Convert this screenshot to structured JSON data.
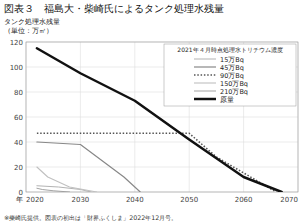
{
  "chart_data": {
    "type": "line",
    "title": "図表３　福島大・柴崎氏によるタンク処理水残量",
    "ylabel": [
      "タンク処理水残量",
      "（単位：万㎥）"
    ],
    "xlabel": "年",
    "annotations": [
      "※柴崎氏提供。図表の初出は「財界ふくしま」2022年12月号。"
    ],
    "xlim": [
      2020,
      2070
    ],
    "ylim": [
      0,
      120
    ],
    "xticks": [
      2020,
      2030,
      2040,
      2050,
      2060,
      2070
    ],
    "yticks": [
      0,
      20,
      40,
      60,
      80,
      100,
      120
    ],
    "grid": true,
    "legend": "upper-right",
    "legend_title": "2021年４月時点処理水トリチウム濃度",
    "series": [
      {
        "name": "15万Bq",
        "color": "#aaaaaa",
        "line_style": "solid",
        "x": [
          2022,
          2026,
          2030,
          2032
        ],
        "values": [
          5,
          4,
          2,
          0
        ]
      },
      {
        "name": "45万Bq",
        "color": "#888888",
        "line_style": "solid",
        "x": [
          2022,
          2030,
          2038,
          2041
        ],
        "values": [
          40,
          38,
          12,
          0
        ]
      },
      {
        "name": "90万Bq",
        "color": "#555555",
        "line_style": "dotted",
        "x": [
          2022,
          2050,
          2055,
          2066
        ],
        "values": [
          47,
          47,
          28,
          0
        ]
      },
      {
        "name": "150万Bq",
        "color": "#c0c0c0",
        "line_style": "solid",
        "x": [
          2022,
          2024,
          2028,
          2033
        ],
        "values": [
          20,
          12,
          4,
          0
        ]
      },
      {
        "name": "210万Bq",
        "color": "#999999",
        "line_style": "solid",
        "x": [
          2022,
          2023,
          2025,
          2028
        ],
        "values": [
          3,
          2,
          1,
          0
        ]
      },
      {
        "name": "原量",
        "color": "#111111",
        "line_style": "solid",
        "x": [
          2022,
          2030,
          2040,
          2050,
          2060,
          2067
        ],
        "values": [
          115,
          95,
          73,
          42,
          12,
          0
        ]
      }
    ]
  }
}
